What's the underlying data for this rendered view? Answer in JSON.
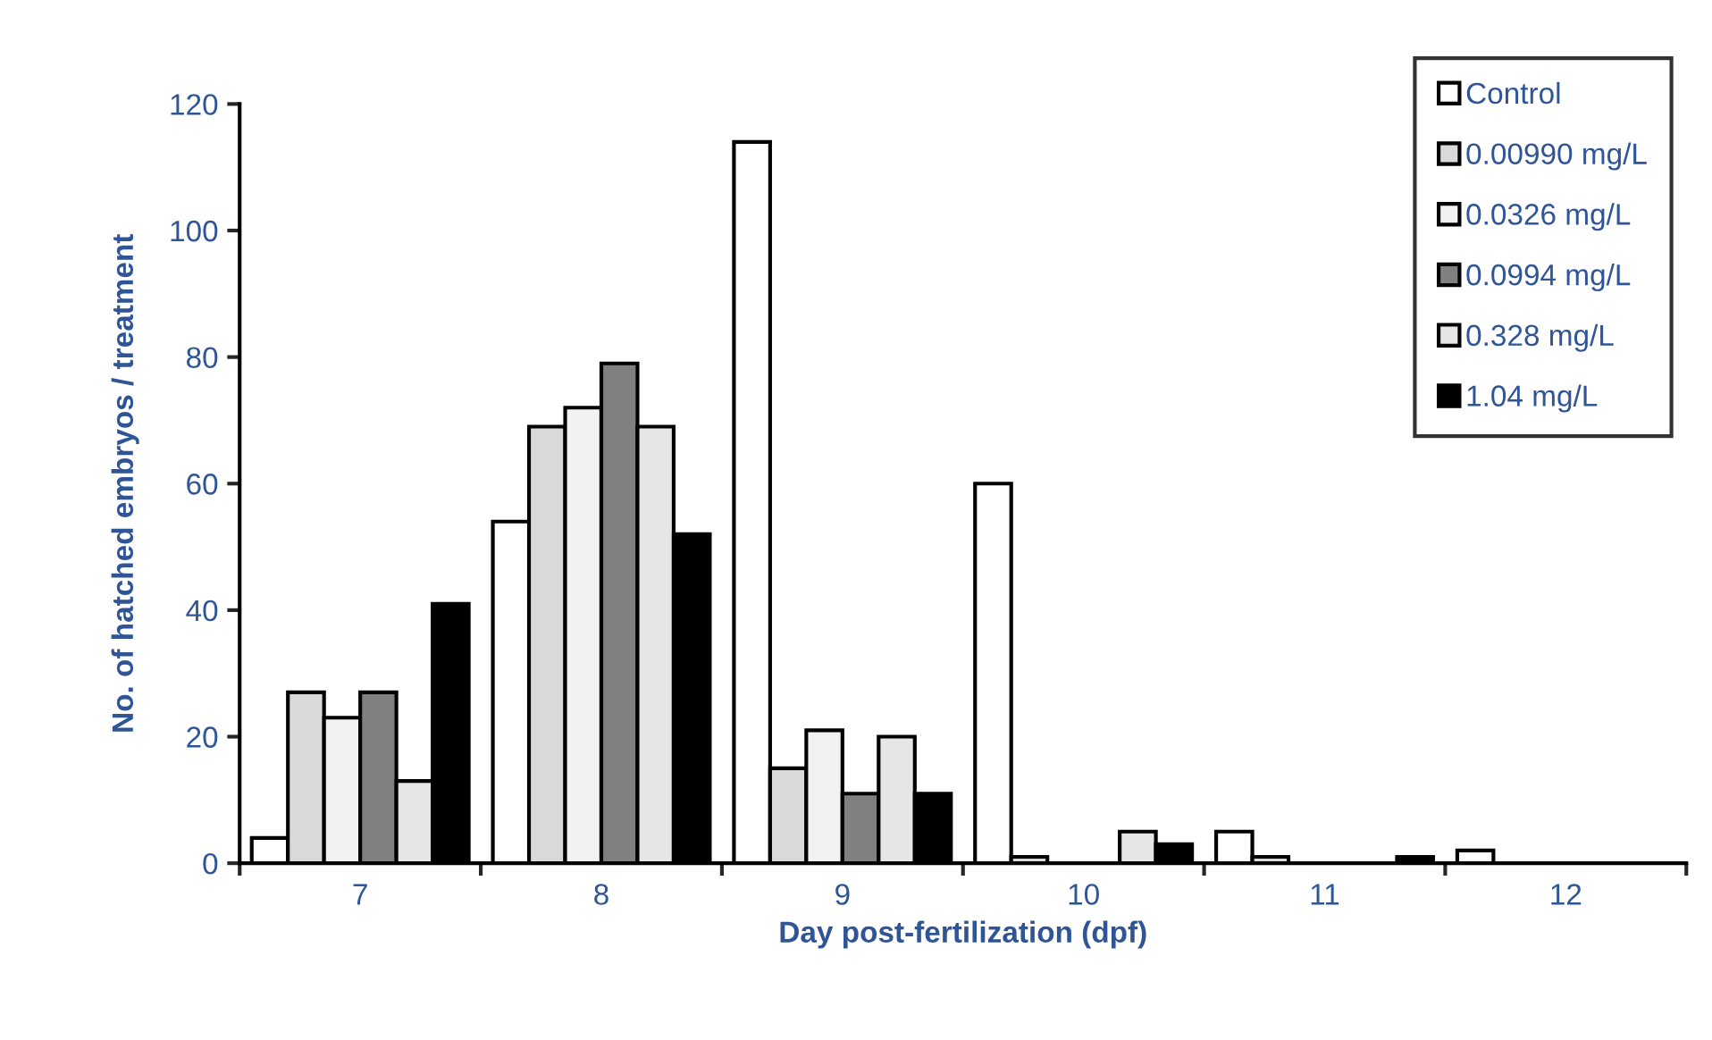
{
  "chart_data": {
    "type": "bar",
    "xlabel": "Day post-fertilization (dpf)",
    "ylabel": "No. of hatched embryos / treatment",
    "categories": [
      "7",
      "8",
      "9",
      "10",
      "11",
      "12"
    ],
    "series": [
      {
        "name": "Control",
        "color": "#ffffff",
        "values": [
          4,
          54,
          114,
          60,
          5,
          2
        ]
      },
      {
        "name": "0.00990 mg/L",
        "color": "#d9d9d9",
        "values": [
          27,
          69,
          15,
          1,
          1,
          0
        ]
      },
      {
        "name": "0.0326 mg/L",
        "color": "#f2f2f2",
        "values": [
          23,
          72,
          21,
          0,
          0,
          0
        ]
      },
      {
        "name": "0.0994 mg/L",
        "color": "#808080",
        "values": [
          27,
          79,
          11,
          0,
          0,
          0
        ]
      },
      {
        "name": "0.328 mg/L",
        "color": "#e6e6e6",
        "values": [
          13,
          69,
          20,
          5,
          0,
          0
        ]
      },
      {
        "name": "1.04 mg/L",
        "color": "#000000",
        "values": [
          41,
          52,
          11,
          3,
          1,
          0
        ]
      }
    ],
    "ylim": [
      0,
      120
    ],
    "yticks": [
      0,
      20,
      40,
      60,
      80,
      100,
      120
    ],
    "grid": false,
    "legend": "top right"
  }
}
